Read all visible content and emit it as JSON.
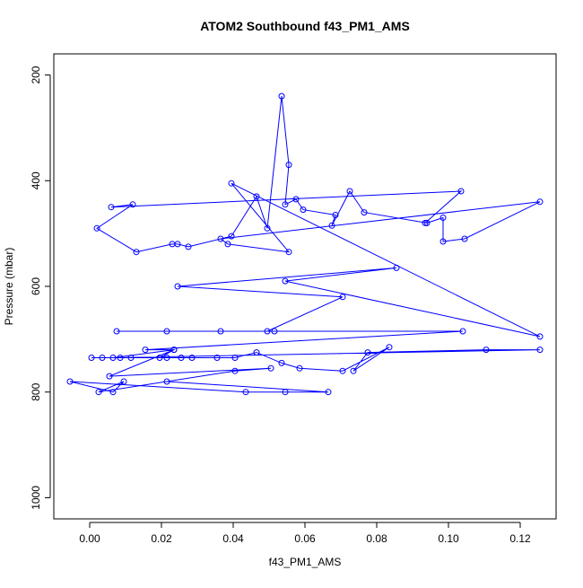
{
  "chart_data": {
    "type": "line",
    "title": "ATOM2 Southbound f43_PM1_AMS",
    "xlabel": "f43_PM1_AMS",
    "ylabel": "Pressure (mbar)",
    "xlim": [
      -0.01,
      0.13
    ],
    "ylim": [
      1040,
      160
    ],
    "x_ticks": [
      0.0,
      0.02,
      0.04,
      0.06,
      0.08,
      0.1,
      0.12
    ],
    "x_tick_labels": [
      "0.00",
      "0.02",
      "0.04",
      "0.06",
      "0.08",
      "0.10",
      "0.12"
    ],
    "y_ticks": [
      200,
      400,
      600,
      800,
      1000
    ],
    "y_tick_labels": [
      "200",
      "400",
      "600",
      "800",
      "1000"
    ],
    "series": [
      {
        "color": "#0000ff",
        "marker": "open-circle",
        "x": [
          0.0935,
          0.1035,
          0.006,
          0.012,
          0.002,
          0.013,
          0.023,
          0.0245,
          0.0275,
          0.0395,
          0.0465,
          0.0495,
          0.0535,
          0.0555,
          0.0545,
          0.0575,
          0.0595,
          0.0685,
          0.0675,
          0.0725,
          0.0765,
          0.094,
          0.0985,
          0.0985,
          0.1045,
          0.1255,
          0.0365,
          0.0385,
          0.0555,
          0.0395,
          0.1255,
          0.0545,
          0.0855,
          0.0245,
          0.0705,
          0.0495,
          0.0075,
          0.0215,
          0.0365,
          0.0515,
          0.104,
          0.0155,
          0.0235,
          0.0195,
          0.0255,
          0.0005,
          0.0035,
          0.0085,
          0.0115,
          0.0215,
          0.0285,
          0.0355,
          0.0405,
          0.0465,
          0.0535,
          0.0585,
          0.0705,
          0.0835,
          0.0735,
          0.0775,
          0.1105,
          0.1255,
          0.0065,
          0.0235,
          0.0055,
          0.0505,
          0.0405,
          0.0025,
          0.0095,
          0.0065,
          -0.0055,
          0.0435,
          0.0545,
          0.0665,
          0.0215
        ],
        "y": [
          480,
          420,
          450,
          445,
          490,
          535,
          520,
          520,
          525,
          505,
          430,
          490,
          240,
          370,
          445,
          435,
          455,
          465,
          485,
          420,
          460,
          480,
          470,
          515,
          510,
          440,
          510,
          520,
          535,
          405,
          695,
          590,
          565,
          600,
          620,
          685,
          685,
          685,
          685,
          685,
          685,
          720,
          720,
          735,
          735,
          735,
          735,
          735,
          735,
          735,
          735,
          735,
          735,
          725,
          745,
          755,
          760,
          715,
          760,
          725,
          720,
          720,
          735,
          720,
          770,
          755,
          760,
          800,
          780,
          800,
          780,
          800,
          800,
          800,
          780
        ]
      }
    ]
  }
}
